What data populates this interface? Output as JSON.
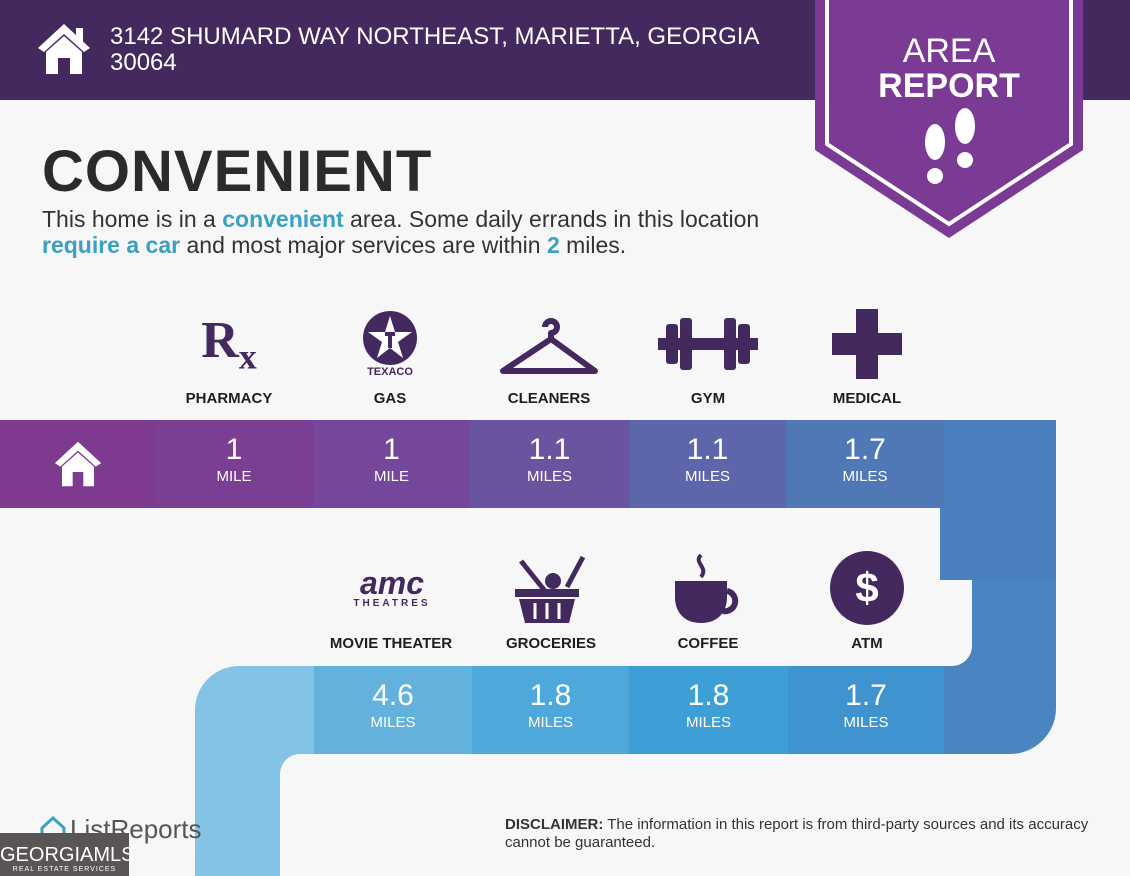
{
  "header": {
    "address": "3142 SHUMARD WAY NORTHEAST, MARIETTA, GEORGIA 30064",
    "badge_line1": "AREA",
    "badge_line2": "REPORT"
  },
  "title": "CONVENIENT",
  "description": {
    "p1": "This home is in a ",
    "h1": "convenient",
    "p2": " area. Some daily errands in this location ",
    "h2": "require a car",
    "p3": " and most major services are within ",
    "h3": "2",
    "p4": " miles."
  },
  "row1": [
    {
      "label": "PHARMACY",
      "value": "1",
      "unit": "MILE",
      "icon": "rx-icon"
    },
    {
      "label": "GAS",
      "value": "1",
      "unit": "MILE",
      "icon": "texaco-icon",
      "brand": "TEXACO"
    },
    {
      "label": "CLEANERS",
      "value": "1.1",
      "unit": "MILES",
      "icon": "hanger-icon"
    },
    {
      "label": "GYM",
      "value": "1.1",
      "unit": "MILES",
      "icon": "dumbbell-icon"
    },
    {
      "label": "MEDICAL",
      "value": "1.7",
      "unit": "MILES",
      "icon": "medical-cross-icon"
    }
  ],
  "row2": [
    {
      "label": "MOVIE THEATER",
      "value": "4.6",
      "unit": "MILES",
      "icon": "amc-icon",
      "brand": "amc",
      "brand_sub": "THEATRES"
    },
    {
      "label": "GROCERIES",
      "value": "1.8",
      "unit": "MILES",
      "icon": "grocery-basket-icon"
    },
    {
      "label": "COFFEE",
      "value": "1.8",
      "unit": "MILES",
      "icon": "coffee-cup-icon"
    },
    {
      "label": "ATM",
      "value": "1.7",
      "unit": "MILES",
      "icon": "dollar-icon"
    }
  ],
  "footer": {
    "listreports": "ListReports",
    "disclaimer_bold": "DISCLAIMER:",
    "disclaimer": " The information in this report is from third-party sources and its accuracy cannot be guaranteed.",
    "mls": "GEORGIAMLS",
    "mls_sub": "REAL ESTATE SERVICES"
  },
  "colors": {
    "header": "#44295f",
    "badge": "#7b3a93",
    "accent": "#3aa0c4"
  }
}
